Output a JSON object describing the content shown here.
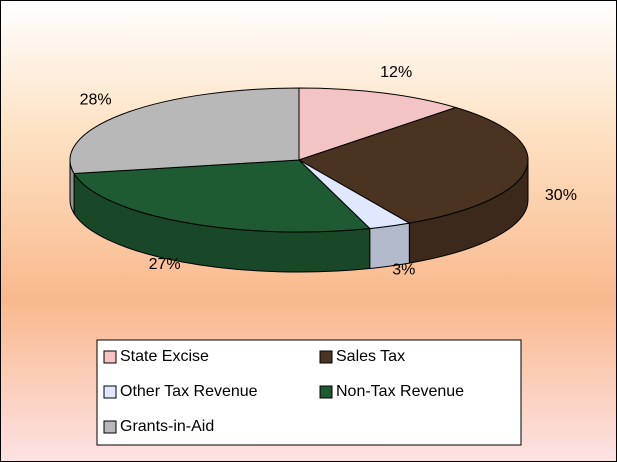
{
  "chart_data": {
    "type": "pie3d",
    "categories": [
      "State Excise",
      "Sales Tax",
      "Other Tax Revenue",
      "Non-Tax Revenue",
      "Grants-in-Aid"
    ],
    "values": [
      12,
      30,
      3,
      27,
      28
    ],
    "value_labels": [
      "12%",
      "30%",
      "3%",
      "27%",
      "28%"
    ],
    "colors": [
      "#f4c4c4",
      "#4b3322",
      "#dfe8ff",
      "#1e5a32",
      "#b8b8b8"
    ],
    "legend": "bottom"
  }
}
